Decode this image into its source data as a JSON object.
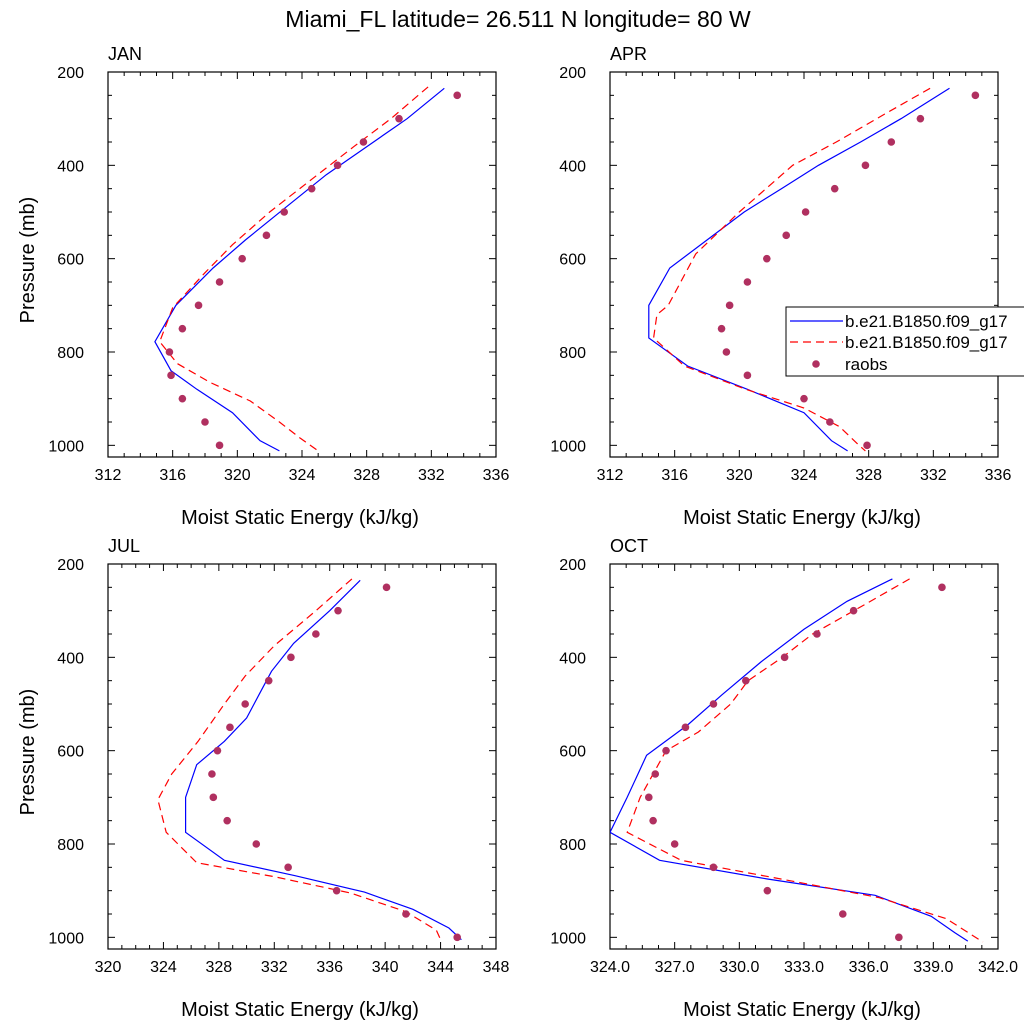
{
  "figure": {
    "title": "Miami_FL  latitude= 26.511 N longitude= 80 W"
  },
  "legend": {
    "location": "right",
    "entries": [
      {
        "label": "b.e21.B1850.f09_g17",
        "color": "#0000ff",
        "dash": "solid",
        "marker": "none"
      },
      {
        "label": "b.e21.B1850.f09_g17",
        "color": "#ff0000",
        "dash": "dashed",
        "marker": "none"
      },
      {
        "label": "raobs",
        "color": "#b03060",
        "dash": "none",
        "marker": "dot"
      }
    ]
  },
  "chart_data": [
    {
      "type": "line",
      "title": "JAN",
      "xlabel": "Moist Static Energy (kJ/kg)",
      "ylabel": "Pressure (mb)",
      "xlim": [
        312,
        336
      ],
      "ylim": [
        200,
        1025
      ],
      "y_reversed": true,
      "grid": false,
      "xticks": [
        312,
        316,
        320,
        324,
        328,
        332,
        336
      ],
      "xtick_labels": [
        "312",
        "316",
        "320",
        "324",
        "328",
        "332",
        "336"
      ],
      "yticks": [
        200,
        400,
        600,
        800,
        1000
      ],
      "ytick_labels": [
        "200",
        "400",
        "600",
        "800",
        "1000"
      ],
      "series": [
        {
          "name": "b.e21.B1850.f09_g17",
          "color": "#0000ff",
          "style": "line",
          "points": [
            [
              332.8,
              235
            ],
            [
              330.5,
              300
            ],
            [
              328.0,
              360
            ],
            [
              325.5,
              420
            ],
            [
              323.0,
              490
            ],
            [
              320.5,
              560
            ],
            [
              318.5,
              620
            ],
            [
              316.2,
              700
            ],
            [
              314.9,
              778
            ],
            [
              315.9,
              840
            ],
            [
              317.5,
              880
            ],
            [
              319.7,
              930
            ],
            [
              321.4,
              990
            ],
            [
              322.6,
              1012
            ]
          ]
        },
        {
          "name": "b.e21.B1850.f09_g17",
          "color": "#ff0000",
          "style": "dashed",
          "points": [
            [
              331.8,
              232
            ],
            [
              329.5,
              300
            ],
            [
              327.2,
              360
            ],
            [
              324.6,
              430
            ],
            [
              322.0,
              500
            ],
            [
              319.7,
              570
            ],
            [
              318.0,
              630
            ],
            [
              316.0,
              705
            ],
            [
              315.2,
              778
            ],
            [
              316.3,
              825
            ],
            [
              318.3,
              865
            ],
            [
              320.8,
              905
            ],
            [
              322.6,
              950
            ],
            [
              323.9,
              985
            ],
            [
              325.0,
              1012
            ]
          ]
        },
        {
          "name": "raobs",
          "color": "#b03060",
          "style": "dots",
          "points": [
            [
              333.6,
              250
            ],
            [
              330.0,
              300
            ],
            [
              327.8,
              350
            ],
            [
              326.2,
              400
            ],
            [
              324.6,
              450
            ],
            [
              322.9,
              500
            ],
            [
              321.8,
              550
            ],
            [
              320.3,
              600
            ],
            [
              318.9,
              650
            ],
            [
              317.6,
              700
            ],
            [
              316.6,
              750
            ],
            [
              315.8,
              800
            ],
            [
              315.9,
              850
            ],
            [
              316.6,
              900
            ],
            [
              318.0,
              950
            ],
            [
              318.9,
              1000
            ]
          ]
        }
      ]
    },
    {
      "type": "line",
      "title": "APR",
      "xlabel": "Moist Static Energy (kJ/kg)",
      "ylabel": "",
      "xlim": [
        312,
        336
      ],
      "ylim": [
        200,
        1025
      ],
      "y_reversed": true,
      "grid": false,
      "xticks": [
        312,
        316,
        320,
        324,
        328,
        332,
        336
      ],
      "xtick_labels": [
        "312",
        "316",
        "320",
        "324",
        "328",
        "332",
        "336"
      ],
      "yticks": [
        200,
        400,
        600,
        800,
        1000
      ],
      "ytick_labels": [
        "200",
        "400",
        "600",
        "800",
        "1000"
      ],
      "series": [
        {
          "name": "b.e21.B1850.f09_g17",
          "color": "#0000ff",
          "style": "line",
          "points": [
            [
              333.0,
              235
            ],
            [
              330.0,
              300
            ],
            [
              327.5,
              350
            ],
            [
              324.9,
              400
            ],
            [
              322.6,
              450
            ],
            [
              320.3,
              500
            ],
            [
              318.0,
              560
            ],
            [
              315.7,
              620
            ],
            [
              314.4,
              700
            ],
            [
              314.4,
              770
            ],
            [
              316.8,
              830
            ],
            [
              320.5,
              880
            ],
            [
              324.0,
              930
            ],
            [
              325.7,
              990
            ],
            [
              326.7,
              1012
            ]
          ]
        },
        {
          "name": "b.e21.B1850.f09_g17",
          "color": "#ff0000",
          "style": "dashed",
          "points": [
            [
              331.8,
              235
            ],
            [
              329.0,
              290
            ],
            [
              326.0,
              350
            ],
            [
              323.3,
              400
            ],
            [
              320.0,
              500
            ],
            [
              317.3,
              590
            ],
            [
              315.6,
              700
            ],
            [
              314.9,
              720
            ],
            [
              314.7,
              770
            ],
            [
              316.6,
              830
            ],
            [
              320.4,
              880
            ],
            [
              324.0,
              920
            ],
            [
              326.2,
              960
            ],
            [
              327.4,
              1000
            ],
            [
              327.8,
              1012
            ]
          ]
        },
        {
          "name": "raobs",
          "color": "#b03060",
          "style": "dots",
          "points": [
            [
              334.6,
              250
            ],
            [
              331.2,
              300
            ],
            [
              329.4,
              350
            ],
            [
              327.8,
              400
            ],
            [
              325.9,
              450
            ],
            [
              324.1,
              500
            ],
            [
              322.9,
              550
            ],
            [
              321.7,
              600
            ],
            [
              320.5,
              650
            ],
            [
              319.4,
              700
            ],
            [
              318.9,
              750
            ],
            [
              319.2,
              800
            ],
            [
              320.5,
              850
            ],
            [
              324.0,
              900
            ],
            [
              325.6,
              950
            ],
            [
              327.9,
              1000
            ]
          ]
        }
      ]
    },
    {
      "type": "line",
      "title": "JUL",
      "xlabel": "Moist Static Energy (kJ/kg)",
      "ylabel": "Pressure (mb)",
      "xlim": [
        320,
        348
      ],
      "ylim": [
        200,
        1025
      ],
      "y_reversed": true,
      "grid": false,
      "xticks": [
        320,
        324,
        328,
        332,
        336,
        340,
        344,
        348
      ],
      "xtick_labels": [
        "320",
        "324",
        "328",
        "332",
        "336",
        "340",
        "344",
        "348"
      ],
      "yticks": [
        200,
        400,
        600,
        800,
        1000
      ],
      "ytick_labels": [
        "200",
        "400",
        "600",
        "800",
        "1000"
      ],
      "series": [
        {
          "name": "b.e21.B1850.f09_g17",
          "color": "#0000ff",
          "style": "line",
          "points": [
            [
              338.2,
              235
            ],
            [
              336.0,
              300
            ],
            [
              333.4,
              370
            ],
            [
              331.8,
              430
            ],
            [
              330.9,
              480
            ],
            [
              330.0,
              530
            ],
            [
              328.4,
              580
            ],
            [
              326.4,
              630
            ],
            [
              325.6,
              700
            ],
            [
              325.6,
              775
            ],
            [
              328.4,
              835
            ],
            [
              333.5,
              868
            ],
            [
              338.5,
              903
            ],
            [
              342.0,
              940
            ],
            [
              344.6,
              980
            ],
            [
              345.5,
              1005
            ]
          ]
        },
        {
          "name": "b.e21.B1850.f09_g17",
          "color": "#ff0000",
          "style": "dashed",
          "points": [
            [
              337.6,
              232
            ],
            [
              335.0,
              300
            ],
            [
              332.0,
              375
            ],
            [
              329.9,
              440
            ],
            [
              328.4,
              500
            ],
            [
              326.5,
              580
            ],
            [
              324.6,
              650
            ],
            [
              323.6,
              705
            ],
            [
              324.2,
              775
            ],
            [
              326.4,
              840
            ],
            [
              332.0,
              870
            ],
            [
              337.5,
              905
            ],
            [
              341.5,
              945
            ],
            [
              343.7,
              985
            ],
            [
              344.0,
              1005
            ]
          ]
        },
        {
          "name": "raobs",
          "color": "#b03060",
          "style": "dots",
          "points": [
            [
              340.1,
              250
            ],
            [
              336.6,
              300
            ],
            [
              335.0,
              350
            ],
            [
              333.2,
              400
            ],
            [
              331.6,
              450
            ],
            [
              329.9,
              500
            ],
            [
              328.8,
              550
            ],
            [
              327.9,
              600
            ],
            [
              327.5,
              650
            ],
            [
              327.6,
              700
            ],
            [
              328.6,
              750
            ],
            [
              330.7,
              800
            ],
            [
              333.0,
              850
            ],
            [
              336.5,
              900
            ],
            [
              341.5,
              950
            ],
            [
              345.2,
              1000
            ]
          ]
        }
      ]
    },
    {
      "type": "line",
      "title": "OCT",
      "xlabel": "Moist Static Energy (kJ/kg)",
      "ylabel": "",
      "xlim": [
        324,
        342
      ],
      "ylim": [
        200,
        1025
      ],
      "y_reversed": true,
      "grid": false,
      "xticks": [
        324,
        327,
        330,
        333,
        336,
        339,
        342
      ],
      "xtick_labels": [
        "324.0",
        "327.0",
        "330.0",
        "333.0",
        "336.0",
        "339.0",
        "342.0"
      ],
      "yticks": [
        200,
        400,
        600,
        800,
        1000
      ],
      "ytick_labels": [
        "200",
        "400",
        "600",
        "800",
        "1000"
      ],
      "series": [
        {
          "name": "b.e21.B1850.f09_g17",
          "color": "#0000ff",
          "style": "line",
          "points": [
            [
              337.1,
              232
            ],
            [
              335.0,
              280
            ],
            [
              333.0,
              340
            ],
            [
              331.0,
              410
            ],
            [
              329.2,
              480
            ],
            [
              327.6,
              545
            ],
            [
              325.7,
              610
            ],
            [
              324.8,
              700
            ],
            [
              324.0,
              775
            ],
            [
              326.3,
              835
            ],
            [
              331.3,
              875
            ],
            [
              336.3,
              910
            ],
            [
              338.9,
              955
            ],
            [
              340.0,
              990
            ],
            [
              340.6,
              1008
            ]
          ]
        },
        {
          "name": "b.e21.B1850.f09_g17",
          "color": "#ff0000",
          "style": "dashed",
          "points": [
            [
              337.9,
              232
            ],
            [
              335.7,
              290
            ],
            [
              333.4,
              350
            ],
            [
              332.0,
              400
            ],
            [
              330.4,
              450
            ],
            [
              329.6,
              500
            ],
            [
              328.1,
              560
            ],
            [
              326.6,
              600
            ],
            [
              326.0,
              650
            ],
            [
              325.4,
              700
            ],
            [
              324.8,
              775
            ],
            [
              327.3,
              835
            ],
            [
              332.5,
              880
            ],
            [
              336.5,
              915
            ],
            [
              339.6,
              960
            ],
            [
              341.3,
              1010
            ]
          ]
        },
        {
          "name": "raobs",
          "color": "#b03060",
          "style": "dots",
          "points": [
            [
              339.4,
              250
            ],
            [
              335.3,
              300
            ],
            [
              333.6,
              350
            ],
            [
              332.1,
              400
            ],
            [
              330.3,
              450
            ],
            [
              328.8,
              500
            ],
            [
              327.5,
              550
            ],
            [
              326.6,
              600
            ],
            [
              326.1,
              650
            ],
            [
              325.8,
              700
            ],
            [
              326.0,
              750
            ],
            [
              327.0,
              800
            ],
            [
              328.8,
              850
            ],
            [
              331.3,
              900
            ],
            [
              334.8,
              950
            ],
            [
              337.4,
              1000
            ]
          ]
        }
      ]
    }
  ]
}
